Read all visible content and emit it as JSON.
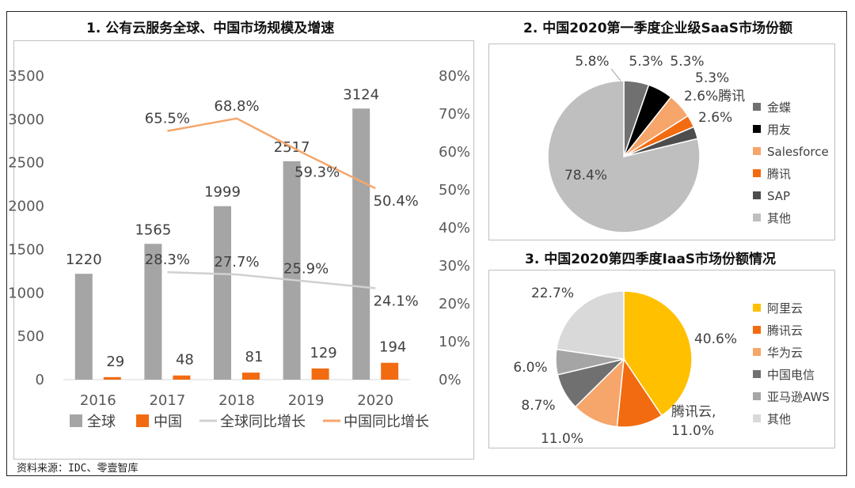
{
  "footer": {
    "source": "资料来源：IDC、零壹智库"
  },
  "colors": {
    "gray": "#A5A5A5",
    "orange": "#F26B10",
    "light_gray_line": "#D0D0D0",
    "light_orange": "#F6A56B",
    "yellow": "#FFC000",
    "dark": "#1a1a1a",
    "dark_gray": "#595959",
    "mid_gray": "#707070"
  },
  "chart_data": [
    {
      "type": "bar",
      "title": "1. 公有云服务全球、中国市场规模及增速",
      "categories": [
        "2016",
        "2017",
        "2018",
        "2019",
        "2020"
      ],
      "series": [
        {
          "name": "全球",
          "kind": "bar",
          "axis": "left",
          "color": "#A5A5A5",
          "values": [
            1220,
            1565,
            1999,
            2517,
            3124
          ],
          "labels": [
            "1220",
            "1565",
            "1999",
            "2517",
            "3124"
          ]
        },
        {
          "name": "中国",
          "kind": "bar",
          "axis": "left",
          "color": "#F26B10",
          "values": [
            29,
            48,
            81,
            129,
            194
          ],
          "labels": [
            "29",
            "48",
            "81",
            "129",
            "194"
          ]
        },
        {
          "name": "全球同比增长",
          "kind": "line",
          "axis": "right",
          "color": "#D0D0D0",
          "values": [
            null,
            28.3,
            27.7,
            25.9,
            24.1
          ],
          "labels": [
            null,
            "28.3%",
            "27.7%",
            "25.9%",
            "24.1%"
          ]
        },
        {
          "name": "中国同比增长",
          "kind": "line",
          "axis": "right",
          "color": "#F4A76C",
          "values": [
            null,
            65.5,
            68.8,
            59.3,
            50.4
          ],
          "labels": [
            null,
            "65.5%",
            "68.8%",
            "59.3%",
            "50.4%"
          ]
        }
      ],
      "y_left": {
        "min": 0,
        "max": 3500,
        "ticks": [
          "0",
          "500",
          "1000",
          "1500",
          "2000",
          "2500",
          "3000",
          "3500"
        ]
      },
      "y_right": {
        "min": 0,
        "max": 80,
        "ticks": [
          "0%",
          "10%",
          "20%",
          "30%",
          "40%",
          "50%",
          "60%",
          "70%",
          "80%"
        ]
      },
      "legend": [
        "全球",
        "中国",
        "全球同比增长",
        "中国同比增长"
      ],
      "legend_position": "bottom"
    },
    {
      "type": "pie",
      "title": "2. 中国2020第一季度企业级SaaS市场份额",
      "slices": [
        {
          "label": "金蝶",
          "value": 5.3,
          "text": "5.3%",
          "color": "#707070"
        },
        {
          "label": "用友",
          "value": 5.3,
          "text": "5.3%",
          "color": "#000000"
        },
        {
          "label": "Salesforce",
          "value": 5.3,
          "text": "5.3%",
          "color": "#F6A56B"
        },
        {
          "label": "腾讯",
          "value": 2.6,
          "text": "2.6%腾讯",
          "color": "#F26B10"
        },
        {
          "label": "SAP",
          "value": 2.6,
          "text": "2.6%",
          "color": "#4D4D4D"
        },
        {
          "label": "其他",
          "value": 78.4,
          "text": "78.4%",
          "color": "#BFBFBF"
        }
      ],
      "extra_label": "5.8%",
      "legend_position": "right"
    },
    {
      "type": "pie",
      "title": "3. 中国2020第四季度IaaS市场份额情况",
      "slices": [
        {
          "label": "阿里云",
          "value": 40.6,
          "text": "40.6%",
          "color": "#FFC000"
        },
        {
          "label": "腾讯云",
          "value": 11.0,
          "text": "腾讯云,\n11.0%",
          "color": "#F26B10"
        },
        {
          "label": "华为云",
          "value": 11.0,
          "text": "11.0%",
          "color": "#F6A56B"
        },
        {
          "label": "中国电信",
          "value": 8.7,
          "text": "8.7%",
          "color": "#707070"
        },
        {
          "label": "亚马逊AWS",
          "value": 6.0,
          "text": "6.0%",
          "color": "#A5A5A5"
        },
        {
          "label": "其他",
          "value": 22.7,
          "text": "22.7%",
          "color": "#D9D9D9"
        }
      ],
      "legend_position": "right"
    }
  ]
}
